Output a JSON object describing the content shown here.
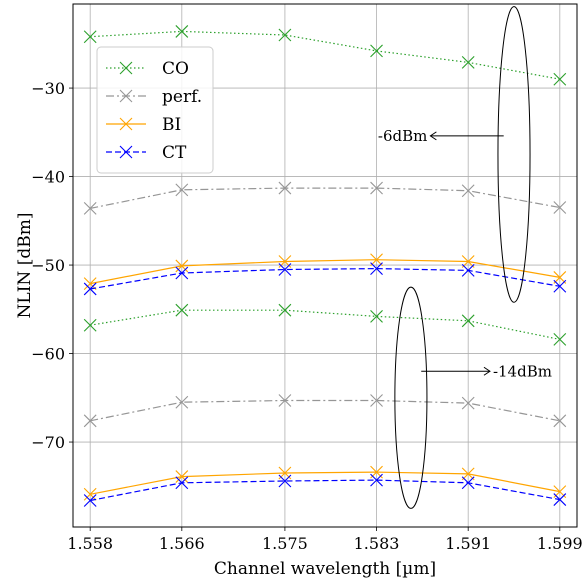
{
  "chart_data": {
    "type": "line",
    "xlabel": "Channel wavelength [µm]",
    "ylabel": "NLIN [dBm]",
    "x": [
      1.558,
      1.566,
      1.575,
      1.583,
      1.591,
      1.599
    ],
    "x_tick_labels": [
      "1.558",
      "1.566",
      "1.575",
      "1.583",
      "1.591",
      "1.599"
    ],
    "y_ticks": [
      -30,
      -40,
      -50,
      -60,
      -70
    ],
    "y_tick_labels": [
      "−30",
      "−40",
      "−50",
      "−60",
      "−70"
    ],
    "xlim": [
      1.5565,
      1.6005
    ],
    "ylim": [
      -79.6,
      -20.5
    ],
    "grid": true,
    "legend_placement": "upper-left",
    "series": [
      {
        "name": "CO",
        "group": "-6dBm",
        "color": "#2ca02c",
        "style": "dotted",
        "values": [
          -24.2,
          -23.6,
          -24.0,
          -25.8,
          -27.1,
          -29.0
        ]
      },
      {
        "name": "perf.",
        "group": "-6dBm",
        "color": "#969696",
        "style": "dashdot",
        "values": [
          -43.6,
          -41.5,
          -41.3,
          -41.3,
          -41.6,
          -43.5
        ]
      },
      {
        "name": "BI",
        "group": "-6dBm",
        "color": "#ffa500",
        "style": "solid",
        "values": [
          -52.1,
          -50.1,
          -49.6,
          -49.4,
          -49.6,
          -51.4
        ]
      },
      {
        "name": "CT",
        "group": "-6dBm",
        "color": "#0000ff",
        "style": "dashed",
        "values": [
          -52.7,
          -50.9,
          -50.5,
          -50.4,
          -50.6,
          -52.4
        ]
      },
      {
        "name": "CO",
        "group": "-14dBm",
        "color": "#2ca02c",
        "style": "dotted",
        "values": [
          -56.8,
          -55.1,
          -55.1,
          -55.8,
          -56.3,
          -58.4
        ]
      },
      {
        "name": "perf.",
        "group": "-14dBm",
        "color": "#969696",
        "style": "dashdot",
        "values": [
          -67.6,
          -65.5,
          -65.3,
          -65.3,
          -65.6,
          -67.6
        ]
      },
      {
        "name": "BI",
        "group": "-14dBm",
        "color": "#ffa500",
        "style": "solid",
        "values": [
          -75.9,
          -73.9,
          -73.5,
          -73.4,
          -73.6,
          -75.6
        ]
      },
      {
        "name": "CT",
        "group": "-14dBm",
        "color": "#0000ff",
        "style": "dashed",
        "values": [
          -76.6,
          -74.6,
          -74.4,
          -74.3,
          -74.6,
          -76.5
        ]
      }
    ],
    "legend": [
      {
        "name": "CO",
        "color": "#2ca02c",
        "style": "dotted"
      },
      {
        "name": "perf.",
        "color": "#969696",
        "style": "dashdot"
      },
      {
        "name": "BI",
        "color": "#ffa500",
        "style": "solid"
      },
      {
        "name": "CT",
        "color": "#0000ff",
        "style": "dashed"
      }
    ],
    "annotations": [
      {
        "text": "-6dBm",
        "ellipse_center": [
          1.595,
          -37.5
        ],
        "ellipse_radius": [
          0.0014,
          16.7
        ],
        "arrow_from": [
          1.5941,
          -35.4
        ],
        "arrow_to": [
          1.5877,
          -35.4
        ],
        "text_position": "left of arrow tip"
      },
      {
        "text": "-14dBm",
        "ellipse_center": [
          1.586,
          -65.0
        ],
        "ellipse_radius": [
          0.0014,
          12.5
        ],
        "arrow_from": [
          1.5869,
          -62.0
        ],
        "arrow_to": [
          1.5929,
          -62.0
        ],
        "text_position": "right of arrow tip"
      }
    ]
  }
}
